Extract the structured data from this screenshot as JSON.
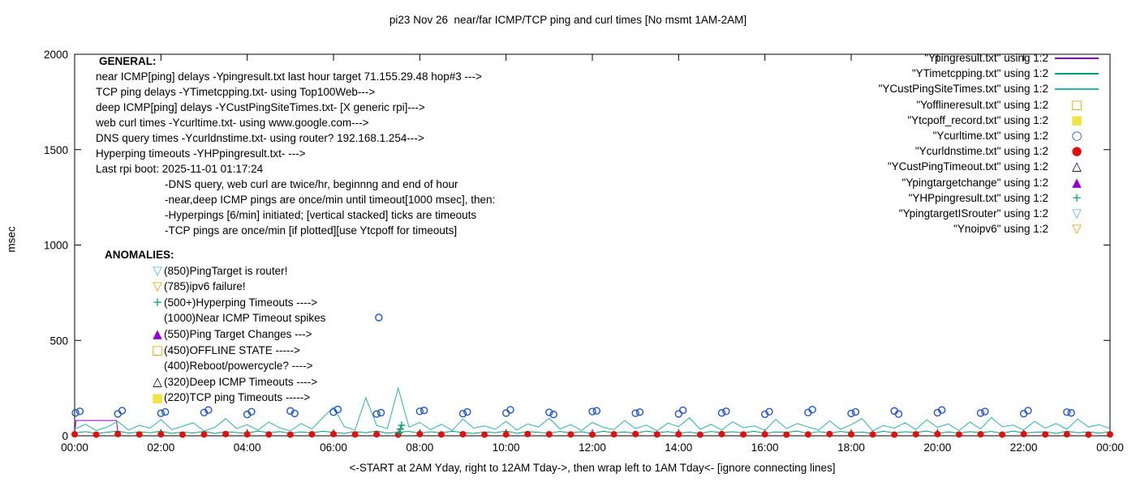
{
  "chart_data": {
    "type": "line",
    "title": "pi23 Nov 26  near/far ICMP/TCP ping and curl times [No msmt 1AM-2AM]",
    "xlabel": "<-START at 2AM Yday, right to 12AM Tday->, then wrap left to 1AM Tday<- [ignore connecting lines]",
    "ylabel": "msec",
    "ylim": [
      0,
      2000
    ],
    "xlim_hours": [
      0,
      24
    ],
    "y_ticks": [
      0,
      500,
      1000,
      1500,
      2000
    ],
    "x_tick_hours": [
      0,
      2,
      4,
      6,
      8,
      10,
      12,
      14,
      16,
      18,
      20,
      22,
      24
    ],
    "x_tick_labels": [
      "00:00",
      "02:00",
      "04:00",
      "06:00",
      "08:00",
      "10:00",
      "12:00",
      "14:00",
      "16:00",
      "18:00",
      "20:00",
      "22:00",
      "00:00"
    ],
    "grid": false,
    "legend_position": "top-right",
    "series": [
      {
        "name": "Ypingresult.txt",
        "style": "line",
        "color": "#9400d3",
        "x": [
          0,
          0.03,
          0.97,
          1.0
        ],
        "y": [
          15,
          80,
          80,
          15
        ]
      },
      {
        "name": "YTimetcpping.txt",
        "style": "line",
        "color": "#009e73",
        "x_start": 0,
        "x_step_h": 0.25,
        "values": [
          15,
          22,
          12,
          18,
          25,
          14,
          20,
          16,
          24,
          13,
          19,
          15,
          23,
          12,
          21,
          17,
          14,
          25,
          16,
          22,
          13,
          20,
          15,
          24,
          18,
          12,
          22,
          16,
          25,
          14,
          19,
          23,
          13,
          21,
          15,
          24,
          17,
          12,
          20,
          16,
          25,
          13,
          22,
          18,
          14,
          23,
          15,
          21,
          12,
          24,
          16,
          20,
          13,
          25,
          17,
          22,
          14,
          19,
          12,
          23,
          16,
          21,
          15,
          24,
          13,
          20,
          18,
          25,
          12,
          22,
          14,
          23,
          16,
          19,
          13,
          24,
          15,
          21,
          17,
          25,
          12,
          20,
          14,
          22,
          16,
          23,
          13,
          25,
          15,
          18,
          21,
          12,
          24,
          16,
          20,
          14,
          22
        ]
      },
      {
        "name": "YCustPingSiteTimes.txt",
        "style": "line",
        "color": "#2fb3a6",
        "x_start": 0,
        "x_step_h": 0.25,
        "values": [
          35,
          60,
          28,
          45,
          75,
          30,
          55,
          40,
          85,
          32,
          50,
          68,
          25,
          44,
          90,
          38,
          58,
          30,
          72,
          42,
          26,
          64,
          36,
          95,
          150,
          48,
          30,
          200,
          55,
          38,
          250,
          45,
          70,
          32,
          60,
          28,
          88,
          40,
          52,
          34,
          76,
          30,
          62,
          46,
          92,
          36,
          58,
          28,
          70,
          44,
          32,
          80,
          38,
          56,
          26,
          66,
          48,
          94,
          34,
          60,
          30,
          74,
          42,
          52,
          28,
          86,
          38,
          64,
          46,
          30,
          78,
          34,
          58,
          90,
          26,
          54,
          40,
          68,
          32,
          84,
          44,
          62,
          28,
          72,
          36,
          96,
          48,
          56,
          30,
          76,
          40,
          64,
          34,
          88,
          46,
          58,
          38
        ]
      },
      {
        "name": "Yofflineresult.txt",
        "style": "points",
        "marker": "square-open",
        "color": "#e69f00",
        "x": [],
        "y": []
      },
      {
        "name": "Ytcpoff_record.txt",
        "style": "points",
        "marker": "square-filled",
        "color": "#f0e442",
        "x": [],
        "y": []
      },
      {
        "name": "Ycurltime.txt",
        "style": "points",
        "marker": "circle-open",
        "color": "#2255cc",
        "x": [
          0.02,
          0.12,
          1,
          1.1,
          2,
          2.1,
          3,
          3.1,
          4,
          4.1,
          5,
          5.1,
          6,
          6.1,
          7,
          7.1,
          8,
          8.1,
          9,
          9.1,
          10,
          10.1,
          11,
          11.1,
          12,
          12.1,
          13,
          13.1,
          14,
          14.1,
          15,
          15.1,
          16,
          16.1,
          17,
          17.1,
          18,
          18.1,
          19,
          19.1,
          20,
          20.1,
          21,
          21.1,
          22,
          22.1,
          23,
          23.1,
          7.05
        ],
        "y": [
          120,
          128,
          115,
          132,
          118,
          125,
          122,
          135,
          112,
          126,
          130,
          117,
          124,
          138,
          114,
          121,
          128,
          133,
          116,
          125,
          119,
          136,
          123,
          112,
          127,
          131,
          118,
          124,
          115,
          134,
          120,
          128,
          113,
          126,
          122,
          137,
          117,
          125,
          130,
          114,
          121,
          135,
          119,
          127,
          116,
          132,
          124,
          120,
          620
        ]
      },
      {
        "name": "Ycurldnstime.txt",
        "style": "points",
        "marker": "circle-filled",
        "color": "#e01010",
        "x_start": 0,
        "x_step_h": 0.5,
        "values": [
          8,
          6,
          9,
          7,
          8,
          6,
          7,
          9,
          8,
          7,
          6,
          8,
          9,
          7,
          8,
          6,
          9,
          7,
          8,
          6,
          7,
          9,
          8,
          7,
          6,
          8,
          9,
          7,
          8,
          6,
          9,
          7,
          8,
          6,
          7,
          9,
          8,
          7,
          6,
          8,
          9,
          7,
          8,
          6,
          9,
          7,
          8,
          6,
          7
        ]
      },
      {
        "name": "YCustPingTimeout.txt",
        "style": "points",
        "marker": "triangle-open",
        "color": "#000000",
        "x": [],
        "y": []
      },
      {
        "name": "Ypingtargetchange",
        "style": "points",
        "marker": "triangle-filled",
        "color": "#9400d3",
        "x": [],
        "y": []
      },
      {
        "name": "YHPpingresult.txt",
        "style": "points",
        "marker": "plus",
        "color": "#009e73",
        "x": [
          7.52,
          7.55,
          7.58
        ],
        "y": [
          15,
          35,
          55
        ]
      },
      {
        "name": "YpingtargetISrouter",
        "style": "points",
        "marker": "triangle-down-open",
        "color": "#56b4e9",
        "x": [],
        "y": []
      },
      {
        "name": "Ynoipv6",
        "style": "points",
        "marker": "triangle-down-open",
        "color": "#e69f00",
        "x": [],
        "y": []
      }
    ]
  },
  "legend": [
    {
      "label": "\"Ypingresult.txt\" using 1:2",
      "style": "line",
      "color": "#9400d3"
    },
    {
      "label": "\"YTimetcpping.txt\" using 1:2",
      "style": "line",
      "color": "#009e73"
    },
    {
      "label": "\"YCustPingSiteTimes.txt\" using 1:2",
      "style": "line",
      "color": "#2fb3a6"
    },
    {
      "label": "\"Yofflineresult.txt\" using 1:2",
      "style": "marker",
      "marker": "square-open",
      "color": "#e69f00"
    },
    {
      "label": "\"Ytcpoff_record.txt\" using 1:2",
      "style": "marker",
      "marker": "square-filled",
      "color": "#f0e442"
    },
    {
      "label": "\"Ycurltime.txt\" using 1:2",
      "style": "marker",
      "marker": "circle-open",
      "color": "#2255cc"
    },
    {
      "label": "\"Ycurldnstime.txt\" using 1:2",
      "style": "marker",
      "marker": "circle-filled",
      "color": "#e01010"
    },
    {
      "label": "\"YCustPingTimeout.txt\" using 1:2",
      "style": "marker",
      "marker": "triangle-open",
      "color": "#000000"
    },
    {
      "label": "\"Ypingtargetchange\" using 1:2",
      "style": "marker",
      "marker": "triangle-filled",
      "color": "#9400d3"
    },
    {
      "label": "\"YHPpingresult.txt\" using 1:2",
      "style": "marker",
      "marker": "plus",
      "color": "#009e73"
    },
    {
      "label": "\"YpingtargetISrouter\" using 1:2",
      "style": "marker",
      "marker": "triangle-down-open",
      "color": "#56b4e9"
    },
    {
      "label": "\"Ynoipv6\" using 1:2",
      "style": "marker",
      "marker": "triangle-down-open",
      "color": "#e69f00"
    }
  ],
  "general": {
    "heading": "GENERAL:",
    "lines": [
      "near ICMP[ping] delays -Ypingresult.txt last hour target 71.155.29.48 hop#3 --->",
      "TCP ping delays -YTimetcpping.txt- using Top100Web--->",
      "deep ICMP[ping] delays -YCustPingSiteTimes.txt- [X generic rpi]--->",
      "web curl times -Ycurltime.txt- using www.google.com--->",
      "DNS query times -Ycurldnstime.txt- using router? 192.168.1.254--->",
      "Hyperping timeouts -YHPpingresult.txt- --->",
      "Last rpi boot: 2025-11-01 01:17:24"
    ],
    "indented_lines": [
      "-DNS query, web curl are twice/hr, beginnng and end of hour",
      "-near,deep ICMP pings are once/min until timeout[1000 msec], then:",
      "-Hyperpings [6/min] initiated; [vertical stacked] ticks are timeouts",
      "-TCP pings are once/min [if plotted][use Ytcpoff for timeouts]"
    ]
  },
  "anomalies": {
    "heading": "ANOMALIES:",
    "items": [
      {
        "marker": "triangle-down-open",
        "color": "#56b4e9",
        "text": "(850)PingTarget is router!"
      },
      {
        "marker": "triangle-down-open",
        "color": "#e69f00",
        "text": "(785)ipv6 failure!"
      },
      {
        "marker": "plus",
        "color": "#009e73",
        "text": "(500+)Hyperping Timeouts ---->"
      },
      {
        "marker": null,
        "color": null,
        "text": "(1000)Near ICMP Timeout spikes"
      },
      {
        "marker": "triangle-filled",
        "color": "#9400d3",
        "text": "(550)Ping Target Changes --->"
      },
      {
        "marker": "square-open",
        "color": "#e69f00",
        "text": "(450)OFFLINE STATE ----->"
      },
      {
        "marker": null,
        "color": null,
        "text": "(400)Reboot/powercycle? ---->"
      },
      {
        "marker": "triangle-open",
        "color": "#000000",
        "text": "(320)Deep ICMP Timeouts ---->"
      },
      {
        "marker": "square-filled",
        "color": "#f0e442",
        "text": "(220)TCP ping Timeouts ----->"
      }
    ]
  }
}
